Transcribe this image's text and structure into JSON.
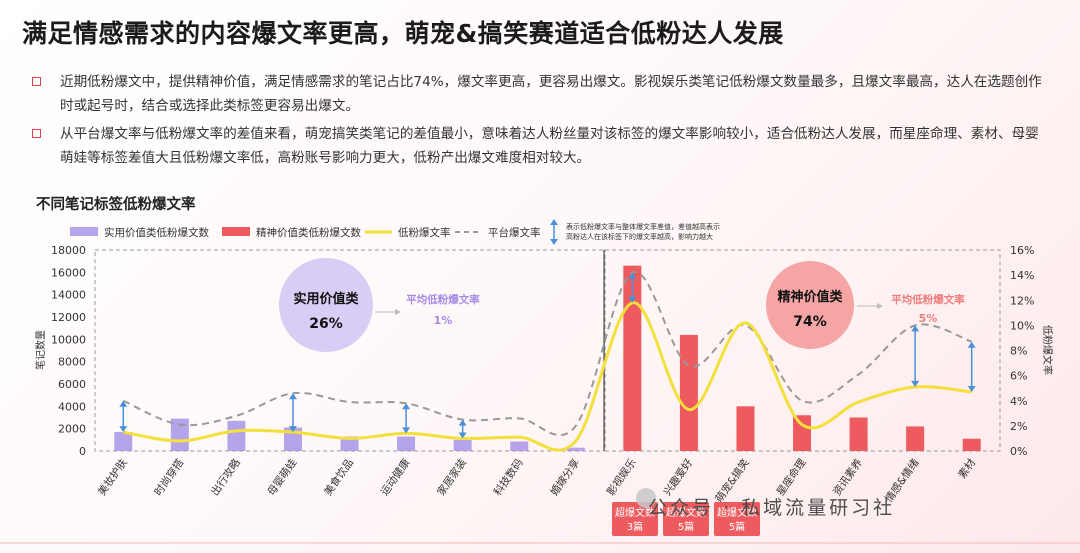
{
  "title": "满足情感需求的内容爆文率更高，萌宠&搞笑赛道适合低粉达人发展",
  "bullets": [
    "近期低粉爆文中，提供精神价值，满足情感需求的笔记占比74%，爆文率更高，更容易出爆文。影视娱乐类笔记低粉爆文数量最多，且爆文率最高，达人在选题创作时或起号时，结合或选择此类标签更容易出爆文。",
    "从平台爆文率与低粉爆文率的差值来看，萌宠搞笑类笔记的差值最小，意味着达人粉丝量对该标签的爆文率影响较小，适合低粉达人发展，而星座命理、素材、母婴萌娃等标签差值大且低粉爆文率低，高粉账号影响力更大，低粉产出爆文难度相对较大。"
  ],
  "source_tag": "公众号 · 私域流量研习社",
  "chart_data": {
    "type": "bar",
    "title": "不同笔记标签低粉爆文率",
    "categories": [
      "美妆护肤",
      "时尚穿搭",
      "出行攻略",
      "母婴萌娃",
      "美食饮品",
      "运动健康",
      "家居家装",
      "科技数码",
      "婚嫁分享",
      "影视娱乐",
      "兴趣爱好",
      "萌宠&搞笑",
      "星座命理",
      "资讯素养",
      "情感&情绪",
      "素材"
    ],
    "series": [
      {
        "name": "实用价值类低粉爆文数",
        "axis": "left",
        "values": [
          1700,
          2900,
          2700,
          2100,
          1300,
          1300,
          1000,
          850,
          300,
          null,
          null,
          null,
          null,
          null,
          null,
          null
        ]
      },
      {
        "name": "精神价值类低粉爆文数",
        "axis": "left",
        "values": [
          null,
          null,
          null,
          null,
          null,
          null,
          null,
          null,
          null,
          16600,
          10400,
          4000,
          3200,
          3000,
          2200,
          1100
        ]
      },
      {
        "name": "低粉爆文率",
        "axis": "right",
        "values": [
          1.5,
          0.8,
          1.6,
          1.5,
          1.0,
          1.4,
          1.0,
          1.1,
          0.8,
          11.8,
          3.3,
          10.2,
          2.1,
          3.9,
          5.1,
          4.7
        ]
      },
      {
        "name": "平台爆文率",
        "axis": "right",
        "values": [
          4.0,
          2.1,
          2.8,
          4.6,
          3.9,
          3.8,
          2.5,
          2.6,
          2.0,
          14.2,
          6.8,
          10.0,
          4.0,
          6.1,
          10.0,
          8.7
        ]
      }
    ],
    "legend_note": "表示低粉爆文率与整体爆文率差值，差值越高表示高粉达人在该标签下的爆文率越高，影响力越大",
    "ylabel": "笔记数量",
    "y2label": "低粉爆文率",
    "ylim": [
      0,
      18000
    ],
    "y2lim": [
      0,
      16
    ],
    "yticks": [
      "0",
      "2000",
      "4000",
      "6000",
      "8000",
      "10000",
      "12000",
      "14000",
      "16000",
      "18000"
    ],
    "y2ticks": [
      "0%",
      "2%",
      "4%",
      "6%",
      "8%",
      "10%",
      "12%",
      "14%",
      "16%"
    ],
    "diff_arrow_categories": [
      0,
      3,
      5,
      6,
      9,
      14,
      15
    ],
    "groups": [
      {
        "label": "实用价值类",
        "share": "26%",
        "avg_label": "平均低粉爆文率",
        "avg_value": "1%",
        "color": "#d9ccf5",
        "text_color": "#a58be6"
      },
      {
        "label": "精神价值类",
        "share": "74%",
        "avg_label": "平均低粉爆文率",
        "avg_value": "5%",
        "color": "#f6a5a5",
        "text_color": "#f07d7d"
      }
    ],
    "badges": [
      {
        "line1": "超爆文数",
        "line2": "3篇"
      },
      {
        "line1": "超爆文数",
        "line2": "5篇"
      },
      {
        "line1": "超爆文数",
        "line2": "5篇"
      }
    ],
    "colors": {
      "practical": "#a48ee6",
      "spiritual": "#ee5b5e",
      "rate": "#f3e03a",
      "platform": "#999999",
      "arrow": "#4a90d9",
      "badge": "#ee5b5e"
    }
  }
}
